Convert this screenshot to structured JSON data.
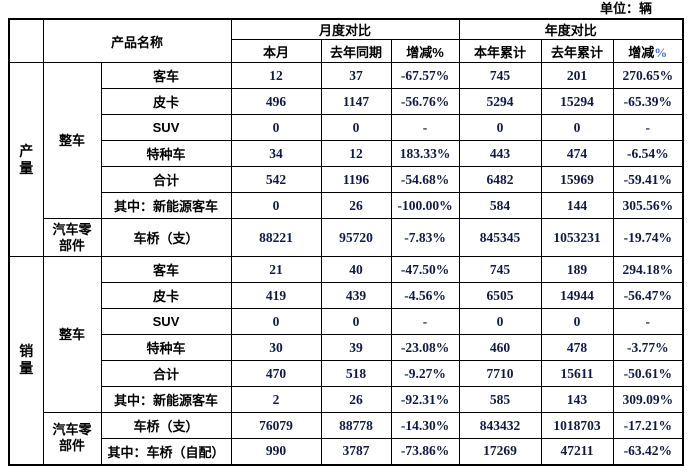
{
  "unit_label": "单位：辆",
  "colors": {
    "number_text": "#101a40",
    "annual_percent_sign": "#4472c4",
    "border": "#000000"
  },
  "header": {
    "product_name": "产品名称",
    "monthly": "月度对比",
    "annual": "年度对比",
    "cols": [
      "本月",
      "去年同期",
      "增减%",
      "本年累计",
      "去年累计"
    ],
    "annual_change": {
      "text": "增减",
      "percent": "%"
    }
  },
  "sections": [
    {
      "id": "production",
      "label": "产量",
      "groups": [
        {
          "label": "整车",
          "rows": [
            {
              "name": "客车",
              "values": [
                "12",
                "37",
                "-67.57%",
                "745",
                "201",
                "270.65%"
              ]
            },
            {
              "name": "皮卡",
              "values": [
                "496",
                "1147",
                "-56.76%",
                "5294",
                "15294",
                "-65.39%"
              ]
            },
            {
              "name": "SUV",
              "values": [
                "0",
                "0",
                "-",
                "0",
                "0",
                "-"
              ]
            },
            {
              "name": "特种车",
              "values": [
                "34",
                "12",
                "183.33%",
                "443",
                "474",
                "-6.54%"
              ]
            },
            {
              "name": "合计",
              "values": [
                "542",
                "1196",
                "-54.68%",
                "6482",
                "15969",
                "-59.41%"
              ]
            },
            {
              "name": "其中：新能源客车",
              "values": [
                "0",
                "26",
                "-100.00%",
                "584",
                "144",
                "305.56%"
              ]
            }
          ]
        },
        {
          "label": "汽车零部件",
          "rows": [
            {
              "name": "车桥（支）",
              "tall": true,
              "values": [
                "88221",
                "95720",
                "-7.83%",
                "845345",
                "1053231",
                "-19.74%"
              ]
            }
          ]
        }
      ]
    },
    {
      "id": "sales",
      "label": "销量",
      "groups": [
        {
          "label": "整车",
          "rows": [
            {
              "name": "客车",
              "values": [
                "21",
                "40",
                "-47.50%",
                "745",
                "189",
                "294.18%"
              ]
            },
            {
              "name": "皮卡",
              "values": [
                "419",
                "439",
                "-4.56%",
                "6505",
                "14944",
                "-56.47%"
              ]
            },
            {
              "name": "SUV",
              "values": [
                "0",
                "0",
                "-",
                "0",
                "0",
                "-"
              ]
            },
            {
              "name": "特种车",
              "values": [
                "30",
                "39",
                "-23.08%",
                "460",
                "478",
                "-3.77%"
              ]
            },
            {
              "name": "合计",
              "values": [
                "470",
                "518",
                "-9.27%",
                "7710",
                "15611",
                "-50.61%"
              ]
            },
            {
              "name": "其中：新能源客车",
              "values": [
                "2",
                "26",
                "-92.31%",
                "585",
                "143",
                "309.09%"
              ]
            }
          ]
        },
        {
          "label": "汽车零部件",
          "rows": [
            {
              "name": "车桥（支）",
              "values": [
                "76079",
                "88778",
                "-14.30%",
                "843432",
                "1018703",
                "-17.21%"
              ]
            },
            {
              "name": "其中：车桥（自配）",
              "values": [
                "990",
                "3787",
                "-73.86%",
                "17269",
                "47211",
                "-63.42%"
              ]
            }
          ]
        }
      ]
    }
  ]
}
